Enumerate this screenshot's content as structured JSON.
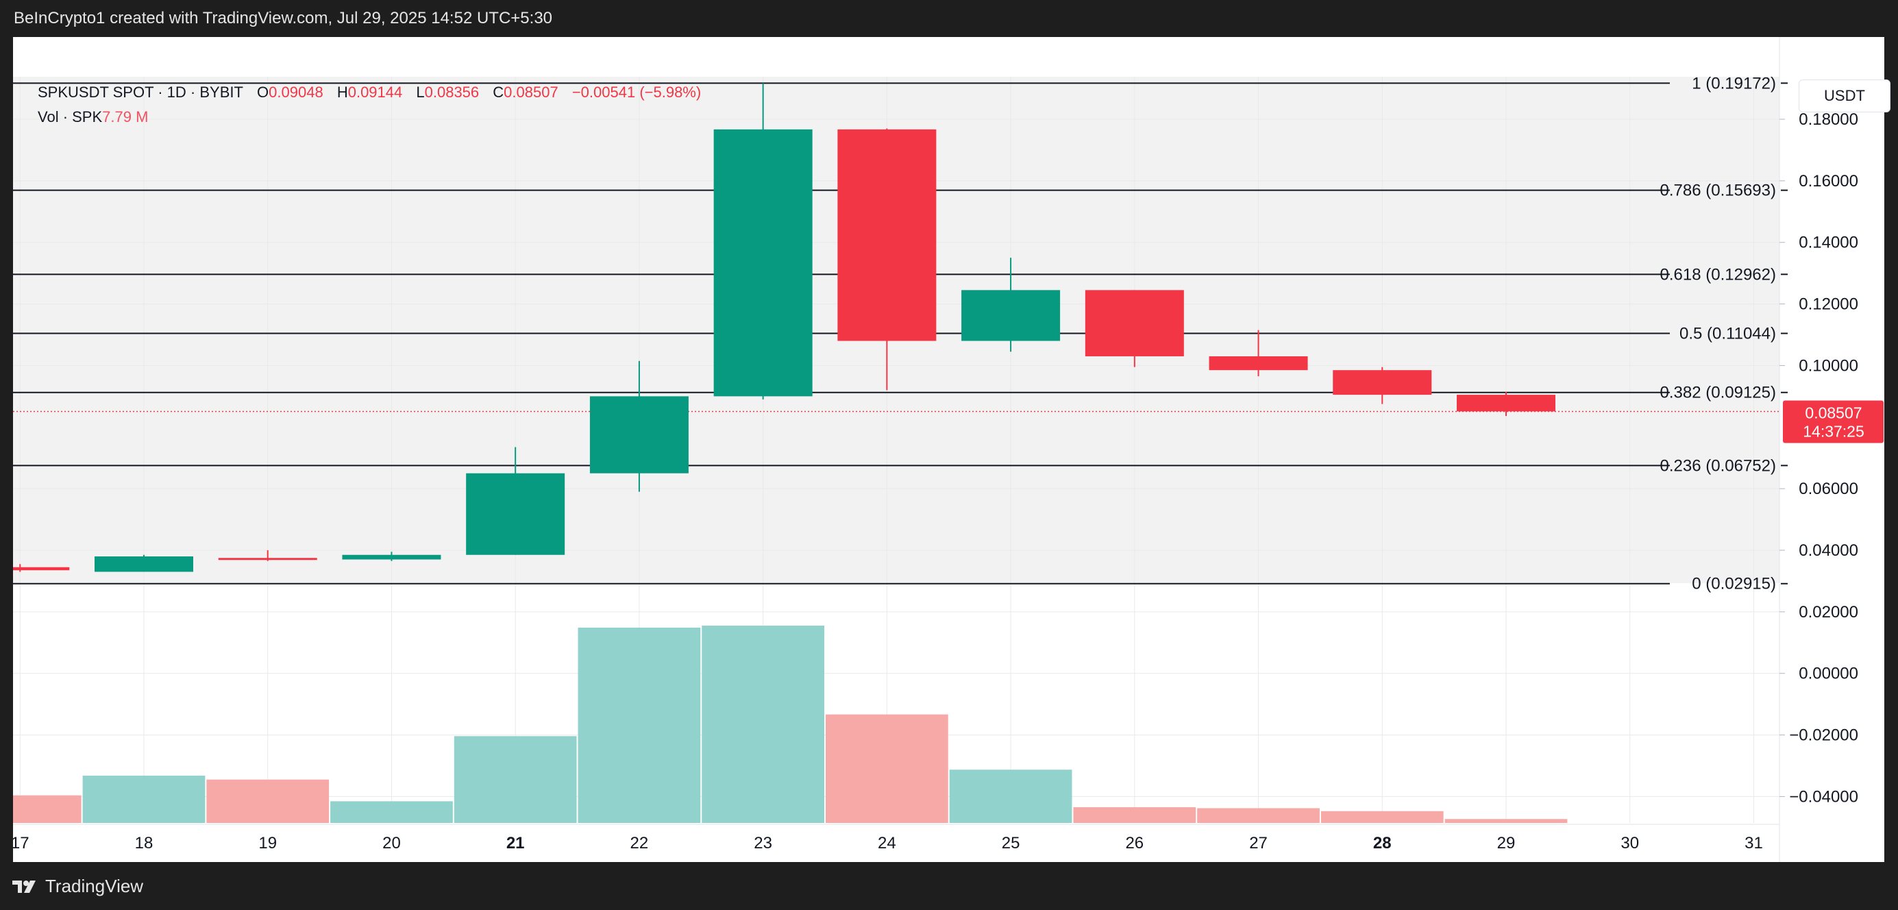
{
  "header": {
    "created_by": "BeInCrypto1 created with TradingView.com, Jul 29, 2025 14:52 UTC+5:30"
  },
  "legend": {
    "symbol": "SPKUSDT SPOT · 1D · BYBIT",
    "open_label": "O",
    "open": "0.09048",
    "high_label": "H",
    "high": "0.09144",
    "low_label": "L",
    "low": "0.08356",
    "close_label": "C",
    "close": "0.08507",
    "change": "−0.00541 (−5.98%)",
    "volume_label": "Vol · SPK",
    "volume": "7.79 M"
  },
  "price_axis": {
    "unit": "USDT",
    "last_price": "0.08507",
    "countdown": "14:37:25"
  },
  "branding": {
    "logo_text": "TradingView"
  },
  "colors": {
    "up": "#089981",
    "down": "#f23645",
    "up_volume": "#92d2cc",
    "down_volume": "#f7a9a7",
    "background": "#ffffff",
    "frame": "#1e1e1e"
  },
  "chart_data": {
    "type": "candlestick",
    "title": "SPKUSDT SPOT · 1D · BYBIT",
    "x_ticks": [
      "17",
      "18",
      "19",
      "20",
      "21",
      "22",
      "23",
      "24",
      "25",
      "26",
      "27",
      "28",
      "29",
      "30",
      "31"
    ],
    "x_ticks_bold": [
      "21",
      "28"
    ],
    "y_ticks": [
      {
        "value": 0.18,
        "label": "0.18000"
      },
      {
        "value": 0.16,
        "label": "0.16000"
      },
      {
        "value": 0.14,
        "label": "0.14000"
      },
      {
        "value": 0.12,
        "label": "0.12000"
      },
      {
        "value": 0.1,
        "label": "0.10000"
      },
      {
        "value": 0.06,
        "label": "0.06000"
      },
      {
        "value": 0.04,
        "label": "0.04000"
      },
      {
        "value": 0.02,
        "label": "0.02000"
      },
      {
        "value": 0.0,
        "label": "0.00000"
      },
      {
        "value": -0.02,
        "label": "−0.02000"
      },
      {
        "value": -0.04,
        "label": "−0.04000"
      }
    ],
    "candles": [
      {
        "day": 17,
        "open": 0.0345,
        "high": 0.0355,
        "low": 0.033,
        "close": 0.0335
      },
      {
        "day": 18,
        "open": 0.033,
        "high": 0.0385,
        "low": 0.033,
        "close": 0.038
      },
      {
        "day": 19,
        "open": 0.0375,
        "high": 0.04,
        "low": 0.0365,
        "close": 0.037
      },
      {
        "day": 20,
        "open": 0.037,
        "high": 0.0395,
        "low": 0.0365,
        "close": 0.0385
      },
      {
        "day": 21,
        "open": 0.0385,
        "high": 0.0735,
        "low": 0.0385,
        "close": 0.065
      },
      {
        "day": 22,
        "open": 0.065,
        "high": 0.1015,
        "low": 0.059,
        "close": 0.09
      },
      {
        "day": 23,
        "open": 0.09,
        "high": 0.1917,
        "low": 0.089,
        "close": 0.1767
      },
      {
        "day": 24,
        "open": 0.1767,
        "high": 0.177,
        "low": 0.092,
        "close": 0.108
      },
      {
        "day": 25,
        "open": 0.108,
        "high": 0.135,
        "low": 0.1045,
        "close": 0.1245
      },
      {
        "day": 26,
        "open": 0.1245,
        "high": 0.1245,
        "low": 0.0995,
        "close": 0.103
      },
      {
        "day": 27,
        "open": 0.103,
        "high": 0.1115,
        "low": 0.0965,
        "close": 0.0985
      },
      {
        "day": 28,
        "open": 0.0985,
        "high": 0.0995,
        "low": 0.0875,
        "close": 0.0905
      },
      {
        "day": 29,
        "open": 0.0905,
        "high": 0.0914,
        "low": 0.0836,
        "close": 0.0851
      }
    ],
    "volume": [
      {
        "day": 17,
        "direction": "down",
        "relative": 0.14
      },
      {
        "day": 18,
        "direction": "up",
        "relative": 0.24
      },
      {
        "day": 19,
        "direction": "down",
        "relative": 0.22
      },
      {
        "day": 20,
        "direction": "up",
        "relative": 0.11
      },
      {
        "day": 21,
        "direction": "up",
        "relative": 0.44
      },
      {
        "day": 22,
        "direction": "up",
        "relative": 0.99
      },
      {
        "day": 23,
        "direction": "up",
        "relative": 1.0
      },
      {
        "day": 24,
        "direction": "down",
        "relative": 0.55
      },
      {
        "day": 25,
        "direction": "up",
        "relative": 0.27
      },
      {
        "day": 26,
        "direction": "down",
        "relative": 0.08
      },
      {
        "day": 27,
        "direction": "down",
        "relative": 0.075
      },
      {
        "day": 28,
        "direction": "down",
        "relative": 0.06
      },
      {
        "day": 29,
        "direction": "down",
        "relative": 0.02
      }
    ],
    "fib_levels": [
      {
        "ratio": "1",
        "price": 0.19172,
        "label": "1 (0.19172)"
      },
      {
        "ratio": "0.786",
        "price": 0.15693,
        "label": "0.786 (0.15693)"
      },
      {
        "ratio": "0.618",
        "price": 0.12962,
        "label": "0.618 (0.12962)"
      },
      {
        "ratio": "0.5",
        "price": 0.11044,
        "label": "0.5 (0.11044)"
      },
      {
        "ratio": "0.382",
        "price": 0.09125,
        "label": "0.382 (0.09125)"
      },
      {
        "ratio": "0.236",
        "price": 0.06752,
        "label": "0.236 (0.06752)"
      },
      {
        "ratio": "0",
        "price": 0.02915,
        "label": "0 (0.02915)"
      }
    ],
    "last_price": 0.08507,
    "grid": true
  }
}
